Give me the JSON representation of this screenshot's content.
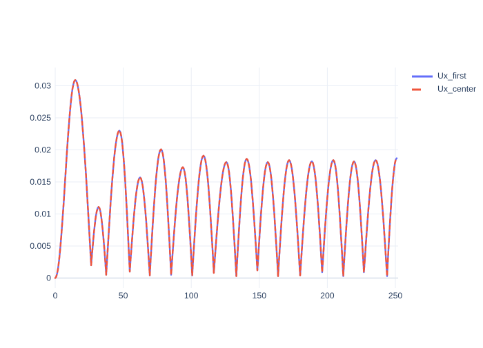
{
  "figure": {
    "background_color": "#ffffff",
    "text_color": "#2a3f5f",
    "gridline_color": "#e9eef6",
    "zeroline_color": "#d7dfe9"
  },
  "legend": {
    "items": [
      {
        "label": "Ux_first",
        "color": "#636EFA",
        "dash": "solid"
      },
      {
        "label": "Ux_center",
        "color": "#EF553B",
        "dash": "dash"
      }
    ]
  },
  "chart_data": {
    "type": "line",
    "title": "",
    "xlabel": "",
    "ylabel": "",
    "xlim": [
      0,
      252
    ],
    "ylim": [
      -0.0018,
      0.0326
    ],
    "grid": true,
    "legend_position": "right-top-outside",
    "x_ticks": [
      0,
      50,
      100,
      150,
      200,
      250
    ],
    "x_tick_labels": [
      "0",
      "50",
      "100",
      "150",
      "200",
      "250"
    ],
    "y_ticks": [
      0,
      0.005,
      0.01,
      0.015,
      0.02,
      0.025,
      0.03
    ],
    "y_tick_labels": [
      "0",
      "0.005",
      "0.01",
      "0.015",
      "0.02",
      "0.025",
      "0.03"
    ],
    "note": "Both traces coincide almost exactly; rectified oscillation (all values >= 0) with beating that settles to a steady amplitude of ~0.0183 and peak spacing ~15.7. Extrema given as [x, y] alternating minima/maxima.",
    "series": [
      {
        "name": "Ux_first",
        "color": "#636EFA",
        "style": "solid",
        "width": 2.4,
        "extrema": [
          [
            0,
            0
          ],
          [
            14.7,
            0.0309
          ],
          [
            26.4,
            0.002
          ],
          [
            31.9,
            0.0111
          ],
          [
            37.5,
            0.0005
          ],
          [
            47.2,
            0.023
          ],
          [
            54.8,
            0.001
          ],
          [
            62.4,
            0.0157
          ],
          [
            69.5,
            0.0004
          ],
          [
            77.8,
            0.0201
          ],
          [
            85.2,
            0.0005
          ],
          [
            93.8,
            0.0173
          ],
          [
            100.7,
            0.0004
          ],
          [
            109,
            0.0191
          ],
          [
            116.6,
            0.0008
          ],
          [
            125.8,
            0.0181
          ],
          [
            133.1,
            0.0003
          ],
          [
            140.7,
            0.0186
          ],
          [
            148.6,
            0.0012
          ],
          [
            156.2,
            0.0181
          ],
          [
            163.8,
            0.0003
          ],
          [
            171.9,
            0.0184
          ],
          [
            180,
            0.0004
          ],
          [
            188.6,
            0.0182
          ],
          [
            196.2,
            0.0009
          ],
          [
            204.4,
            0.0184
          ],
          [
            211.7,
            0.0003
          ],
          [
            219.6,
            0.0182
          ],
          [
            226.9,
            0.0009
          ],
          [
            235.5,
            0.0184
          ],
          [
            243.9,
            0.0003
          ],
          [
            251,
            0.0187
          ]
        ]
      },
      {
        "name": "Ux_center",
        "color": "#EF553B",
        "style": "dash",
        "width": 2.4,
        "extrema": [
          [
            0,
            0
          ],
          [
            14.7,
            0.0309
          ],
          [
            26.4,
            0.002
          ],
          [
            31.9,
            0.0111
          ],
          [
            37.5,
            0.0005
          ],
          [
            47.2,
            0.023
          ],
          [
            54.8,
            0.001
          ],
          [
            62.4,
            0.0157
          ],
          [
            69.5,
            0.0004
          ],
          [
            77.8,
            0.0201
          ],
          [
            85.2,
            0.0005
          ],
          [
            93.8,
            0.0173
          ],
          [
            100.7,
            0.0004
          ],
          [
            109,
            0.0191
          ],
          [
            116.6,
            0.0008
          ],
          [
            125.8,
            0.0181
          ],
          [
            133.1,
            0.0003
          ],
          [
            140.7,
            0.0186
          ],
          [
            148.6,
            0.0012
          ],
          [
            156.2,
            0.0181
          ],
          [
            163.8,
            0.0003
          ],
          [
            171.9,
            0.0184
          ],
          [
            180,
            0.0004
          ],
          [
            188.6,
            0.0182
          ],
          [
            196.2,
            0.0009
          ],
          [
            204.4,
            0.0184
          ],
          [
            211.7,
            0.0003
          ],
          [
            219.6,
            0.0182
          ],
          [
            226.9,
            0.0009
          ],
          [
            235.5,
            0.0184
          ],
          [
            243.9,
            0.0003
          ],
          [
            251,
            0.0187
          ]
        ]
      }
    ]
  }
}
